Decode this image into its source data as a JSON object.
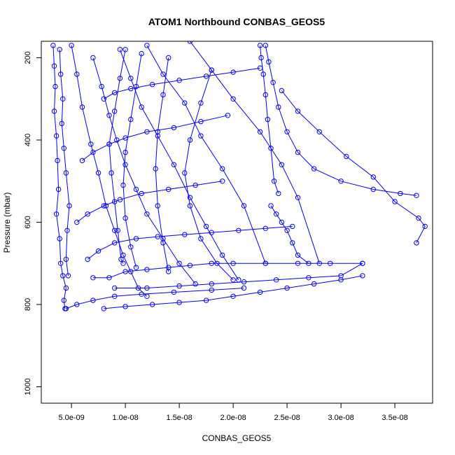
{
  "chart_data": {
    "type": "scatter",
    "title": "ATOM1 Northbound CONBAS_GEOS5",
    "xlabel": "CONBAS_GEOS5",
    "ylabel": "Pressure (mbar)",
    "xlim": [
      2.2e-09,
      3.85e-08
    ],
    "ylim": [
      1040,
      160
    ],
    "y_reversed": true,
    "x_ticks": [
      5e-09,
      1e-08,
      1.5e-08,
      2e-08,
      2.5e-08,
      3e-08,
      3.5e-08
    ],
    "x_tick_labels": [
      "5.0e-09",
      "1.0e-08",
      "1.5e-08",
      "2.0e-08",
      "2.5e-08",
      "3.0e-08",
      "3.5e-08"
    ],
    "y_ticks": [
      200,
      400,
      600,
      800,
      1000
    ],
    "y_tick_labels": [
      "200",
      "400",
      "600",
      "800",
      "1000"
    ],
    "style": "points connected by lines",
    "grid": false,
    "legend": "none",
    "colors": {
      "series": "#0000ff",
      "axis": "#000000",
      "background": "#ffffff"
    },
    "series": [
      {
        "x": [
          3.3e-09,
          3.4e-09,
          3.5e-09,
          3.4e-09,
          3.6e-09,
          3.7e-09,
          3.8e-09,
          3.6e-09,
          3.9e-09,
          4e-09,
          4.2e-09,
          4.5e-09,
          4.3e-09,
          4.4e-09
        ],
        "y": [
          170,
          220,
          270,
          330,
          390,
          450,
          520,
          580,
          640,
          700,
          730,
          760,
          790,
          810
        ]
      },
      {
        "x": [
          3.9e-09,
          4e-09,
          4.2e-09,
          4.1e-09,
          4.3e-09,
          4.5e-09,
          4.8e-09,
          4.6e-09,
          4.5e-09,
          4.7e-09
        ],
        "y": [
          180,
          240,
          300,
          360,
          420,
          480,
          560,
          620,
          690,
          730
        ]
      },
      {
        "x": [
          5e-09,
          5.5e-09,
          6e-09,
          6.8e-09,
          7.5e-09,
          8.2e-09,
          9e-09,
          9.8e-09,
          1.05e-08,
          1.12e-08,
          1.2e-08
        ],
        "y": [
          170,
          240,
          320,
          410,
          480,
          560,
          620,
          680,
          720,
          760,
          780
        ]
      },
      {
        "x": [
          7e-09,
          7.8e-09,
          8.5e-09,
          9.2e-09,
          1e-08,
          1.1e-08,
          1.2e-08,
          1.35e-08,
          1.5e-08,
          1.65e-08
        ],
        "y": [
          200,
          270,
          340,
          400,
          460,
          520,
          580,
          640,
          700,
          750
        ]
      },
      {
        "x": [
          9.5e-09,
          1.05e-08,
          1.15e-08,
          1.3e-08,
          1.45e-08,
          1.6e-08,
          1.75e-08,
          1.9e-08,
          2.05e-08
        ],
        "y": [
          180,
          250,
          320,
          390,
          460,
          540,
          610,
          680,
          740
        ]
      },
      {
        "x": [
          1.2e-08,
          1.35e-08,
          1.55e-08,
          1.7e-08,
          1.9e-08,
          2.1e-08,
          2.3e-08
        ],
        "y": [
          170,
          240,
          310,
          390,
          470,
          560,
          700
        ]
      },
      {
        "x": [
          1.6e-08,
          1.8e-08,
          2e-08,
          2.25e-08,
          2.45e-08,
          2.6e-08,
          2.8e-08
        ],
        "y": [
          160,
          230,
          300,
          380,
          460,
          540,
          700
        ]
      },
      {
        "x": [
          2.25e-08,
          2.26e-08,
          2.28e-08,
          2.3e-08,
          2.32e-08,
          2.35e-08,
          2.38e-08,
          2.42e-08
        ],
        "y": [
          170,
          200,
          240,
          290,
          350,
          420,
          500,
          530
        ]
      },
      {
        "x": [
          2.3e-08,
          2.33e-08,
          2.37e-08,
          2.42e-08,
          2.5e-08,
          2.6e-08,
          2.75e-08,
          3e-08,
          3.3e-08,
          3.55e-08,
          3.7e-08
        ],
        "y": [
          170,
          210,
          260,
          320,
          380,
          430,
          470,
          500,
          520,
          530,
          535
        ]
      },
      {
        "x": [
          2.45e-08,
          2.6e-08,
          2.8e-08,
          3.05e-08,
          3.3e-08,
          3.5e-08,
          3.72e-08,
          3.78e-08,
          3.7e-08
        ],
        "y": [
          280,
          330,
          380,
          440,
          490,
          550,
          590,
          610,
          650
        ]
      },
      {
        "x": [
          8e-09,
          1e-08,
          1.25e-08,
          1.5e-08,
          1.75e-08,
          2e-08,
          2.25e-08,
          2.5e-08,
          2.75e-08,
          3e-08,
          3.2e-08
        ],
        "y": [
          810,
          805,
          800,
          795,
          790,
          780,
          770,
          760,
          750,
          740,
          730
        ]
      },
      {
        "x": [
          9e-09,
          1.2e-08,
          1.5e-08,
          1.8e-08,
          2.1e-08,
          2.4e-08,
          2.7e-08,
          3e-08,
          3.2e-08
        ],
        "y": [
          760,
          760,
          755,
          750,
          745,
          740,
          735,
          730,
          700
        ]
      },
      {
        "x": [
          7e-09,
          8.5e-09,
          1e-08,
          1.2e-08,
          1.4e-08,
          1.6e-08,
          1.8e-08,
          2e-08,
          2.3e-08,
          2.6e-08,
          2.9e-08,
          3.2e-08
        ],
        "y": [
          735,
          735,
          720,
          715,
          710,
          705,
          700,
          700,
          700,
          700,
          700,
          700
        ]
      },
      {
        "x": [
          6.5e-09,
          7.5e-09,
          9e-09,
          1.1e-08,
          1.3e-08,
          1.55e-08,
          1.8e-08,
          2.05e-08,
          2.3e-08,
          2.55e-08
        ],
        "y": [
          690,
          670,
          650,
          640,
          635,
          630,
          625,
          620,
          615,
          610
        ]
      },
      {
        "x": [
          5.5e-09,
          6.5e-09,
          8e-09,
          9.5e-09,
          1.15e-08,
          1.4e-08,
          1.65e-08,
          1.9e-08
        ],
        "y": [
          600,
          580,
          560,
          545,
          530,
          520,
          510,
          500
        ]
      },
      {
        "x": [
          6e-09,
          7e-09,
          8.5e-09,
          1e-08,
          1.2e-08,
          1.45e-08,
          1.7e-08,
          1.95e-08
        ],
        "y": [
          450,
          430,
          410,
          395,
          380,
          370,
          355,
          340
        ]
      },
      {
        "x": [
          8e-09,
          9e-09,
          1.05e-08,
          1.25e-08,
          1.5e-08,
          1.75e-08,
          2e-08,
          2.25e-08
        ],
        "y": [
          300,
          285,
          275,
          265,
          255,
          245,
          235,
          225
        ]
      },
      {
        "x": [
          1e-08,
          9.5e-09,
          9e-09,
          8.5e-09,
          8.7e-09,
          9e-09,
          9.3e-09,
          9.6e-09,
          9.8e-09
        ],
        "y": [
          180,
          250,
          330,
          410,
          480,
          550,
          620,
          690,
          700
        ]
      },
      {
        "x": [
          1.15e-08,
          1.1e-08,
          1.05e-08,
          1e-08,
          9.8e-09,
          1e-08,
          1.05e-08,
          1.1e-08
        ],
        "y": [
          190,
          270,
          350,
          430,
          510,
          590,
          660,
          710
        ]
      },
      {
        "x": [
          1.4e-08,
          1.35e-08,
          1.3e-08,
          1.28e-08,
          1.3e-08,
          1.35e-08,
          1.4e-08
        ],
        "y": [
          200,
          290,
          380,
          470,
          560,
          650,
          720
        ]
      },
      {
        "x": [
          1.8e-08,
          1.7e-08,
          1.6e-08,
          1.55e-08,
          1.6e-08,
          1.7e-08,
          1.85e-08,
          2e-08
        ],
        "y": [
          230,
          310,
          400,
          480,
          560,
          640,
          700,
          740
        ]
      },
      {
        "x": [
          4.5e-09,
          5.5e-09,
          7e-09,
          9e-09,
          1.15e-08,
          1.45e-08,
          1.8e-08,
          2.1e-08
        ],
        "y": [
          810,
          800,
          790,
          780,
          775,
          770,
          765,
          760
        ]
      },
      {
        "x": [
          2.35e-08,
          2.4e-08,
          2.45e-08,
          2.5e-08,
          2.55e-08,
          2.6e-08,
          2.7e-08
        ],
        "y": [
          560,
          580,
          600,
          620,
          650,
          680,
          700
        ]
      }
    ]
  }
}
